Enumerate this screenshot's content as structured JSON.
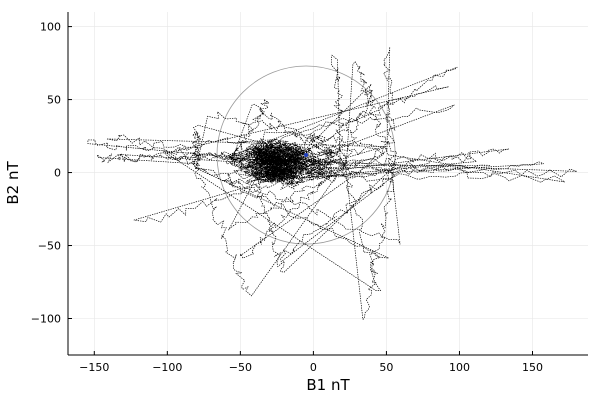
{
  "chart_data": {
    "type": "scatter",
    "title": "",
    "xlabel": "B1 nT",
    "ylabel": "B2 nT",
    "xlim": [
      -168,
      188
    ],
    "ylim": [
      -125,
      110
    ],
    "xticks": [
      -150,
      -100,
      -50,
      0,
      50,
      100,
      150
    ],
    "yticks": [
      -100,
      -50,
      0,
      50,
      100
    ],
    "xtick_labels": [
      "−150",
      "−100",
      "−50",
      "0",
      "50",
      "100",
      "150"
    ],
    "ytick_labels": [
      "−100",
      "−50",
      "0",
      "50",
      "100"
    ],
    "grid": true,
    "legend": "none",
    "series": [
      {
        "style": "dotted-trace",
        "color": "#000000",
        "cluster_centers": [
          [
            -55,
            10
          ],
          [
            -40,
            -5
          ],
          [
            -20,
            5
          ],
          [
            20,
            5
          ],
          [
            50,
            15
          ],
          [
            55,
            0
          ],
          [
            -80,
            5
          ],
          [
            -100,
            15
          ]
        ],
        "outliers": [
          [
            -155,
            20
          ],
          [
            -140,
            25
          ],
          [
            -120,
            -35
          ],
          [
            -130,
            10
          ],
          [
            -150,
            10
          ],
          [
            -45,
            -85
          ],
          [
            -50,
            -60
          ],
          [
            -60,
            -40
          ],
          [
            -20,
            -70
          ],
          [
            -25,
            -60
          ],
          [
            35,
            -100
          ],
          [
            45,
            -80
          ],
          [
            50,
            -60
          ],
          [
            60,
            -50
          ],
          [
            50,
            85
          ],
          [
            30,
            75
          ],
          [
            15,
            80
          ],
          [
            40,
            60
          ],
          [
            100,
            75
          ],
          [
            90,
            60
          ],
          [
            95,
            45
          ],
          [
            110,
            10
          ],
          [
            120,
            5
          ],
          [
            135,
            15
          ],
          [
            160,
            5
          ],
          [
            180,
            0
          ],
          [
            170,
            -5
          ],
          [
            -70,
            40
          ],
          [
            -80,
            30
          ],
          [
            -40,
            45
          ],
          [
            -30,
            50
          ]
        ]
      }
    ],
    "reference_circle": {
      "center": [
        -5,
        12
      ],
      "radius": 61,
      "color": "#999999"
    },
    "markers": [
      {
        "x": -5,
        "y": 12,
        "color": "#1f3fbf"
      }
    ]
  }
}
